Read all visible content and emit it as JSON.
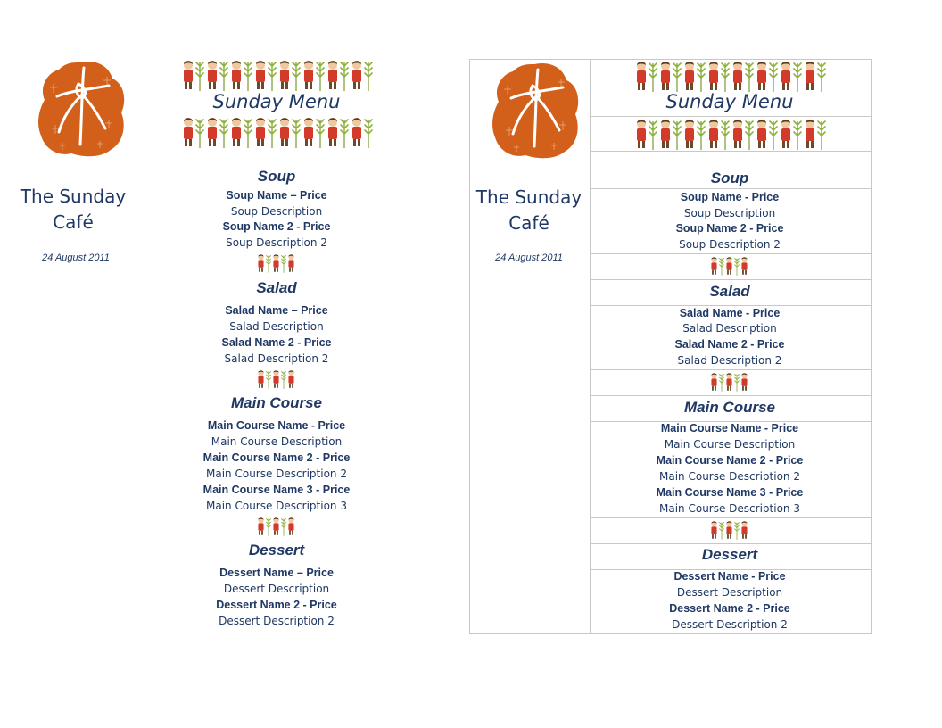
{
  "cafe": {
    "name_line1": "The Sunday",
    "name_line2": "Café",
    "date": "24 August 2011"
  },
  "menu": {
    "title": "Sunday Menu"
  },
  "left": {
    "soup": {
      "heading": "Soup",
      "name1": "Soup Name – Price",
      "desc1": "Soup Description",
      "name2": "Soup Name 2 - Price",
      "desc2": "Soup Description 2"
    },
    "salad": {
      "heading": "Salad",
      "name1": "Salad Name – Price",
      "desc1": "Salad Description",
      "name2": "Salad Name 2 - Price",
      "desc2": "Salad Description 2"
    },
    "main": {
      "heading": "Main Course",
      "name1": "Main Course Name - Price",
      "desc1": "Main Course Description",
      "name2": "Main Course Name 2 - Price",
      "desc2": "Main Course Description 2",
      "name3": "Main Course Name 3 - Price",
      "desc3": "Main Course Description 3"
    },
    "dessert": {
      "heading": "Dessert",
      "name1": "Dessert Name – Price",
      "desc1": "Dessert Description",
      "name2": "Dessert Name 2 - Price",
      "desc2": "Dessert Description 2"
    }
  },
  "right": {
    "soup": {
      "heading": "Soup",
      "name1": "Soup Name - Price",
      "desc1": "Soup Description",
      "name2": "Soup Name 2 - Price",
      "desc2": "Soup Description 2"
    },
    "salad": {
      "heading": "Salad",
      "name1": "Salad Name - Price",
      "desc1": "Salad Description",
      "name2": "Salad Name 2 - Price",
      "desc2": "Salad Description 2"
    },
    "main": {
      "heading": "Main Course",
      "name1": "Main Course Name - Price",
      "desc1": "Main Course Description",
      "name2": "Main Course Name 2 - Price",
      "desc2": "Main Course Description 2",
      "name3": "Main Course Name 3 - Price",
      "desc3": "Main Course Description 3"
    },
    "dessert": {
      "heading": "Dessert",
      "name1": "Dessert Name - Price",
      "desc1": "Dessert Description",
      "name2": "Dessert Name 2 - Price",
      "desc2": "Dessert Description 2"
    }
  },
  "icons": {
    "logo": "cross-logo-icon",
    "banner": "children-palm-banner-icon",
    "divider": "children-palm-divider-icon"
  },
  "colors": {
    "text": "#1f3864",
    "logo": "#d2601a",
    "border": "#c8c8c8"
  }
}
